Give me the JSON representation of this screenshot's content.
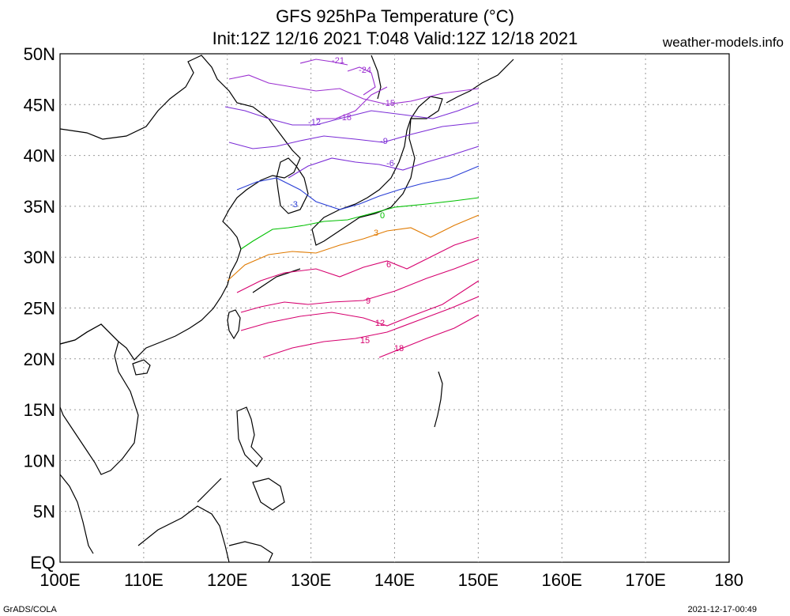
{
  "title_line1": "GFS 925hPa Temperature (°C)",
  "title_line2": "Init:12Z 12/16 2021 T:048 Valid:12Z 12/18 2021",
  "site": "weather-models.info",
  "footer_left": "GrADS/COLA",
  "footer_right": "2021-12-17-00:49",
  "lat_labels": [
    "50N",
    "45N",
    "40N",
    "35N",
    "30N",
    "25N",
    "20N",
    "15N",
    "10N",
    "5N",
    "EQ"
  ],
  "lon_labels": [
    "100E",
    "110E",
    "120E",
    "130E",
    "140E",
    "150E",
    "160E",
    "170E",
    "180"
  ],
  "contour_labels": [
    "-24",
    "-21",
    "-18",
    "-15",
    "-12",
    "-9",
    "-6",
    "-3",
    "0",
    "3",
    "6",
    "9",
    "12",
    "15",
    "18"
  ],
  "colors": {
    "cold_deep": "#9b2fd0",
    "cold": "#7a2bd6",
    "cool": "#2a3fd6",
    "zero": "#00c000",
    "warm": "#e07a00",
    "hot": "#d6006e"
  }
}
